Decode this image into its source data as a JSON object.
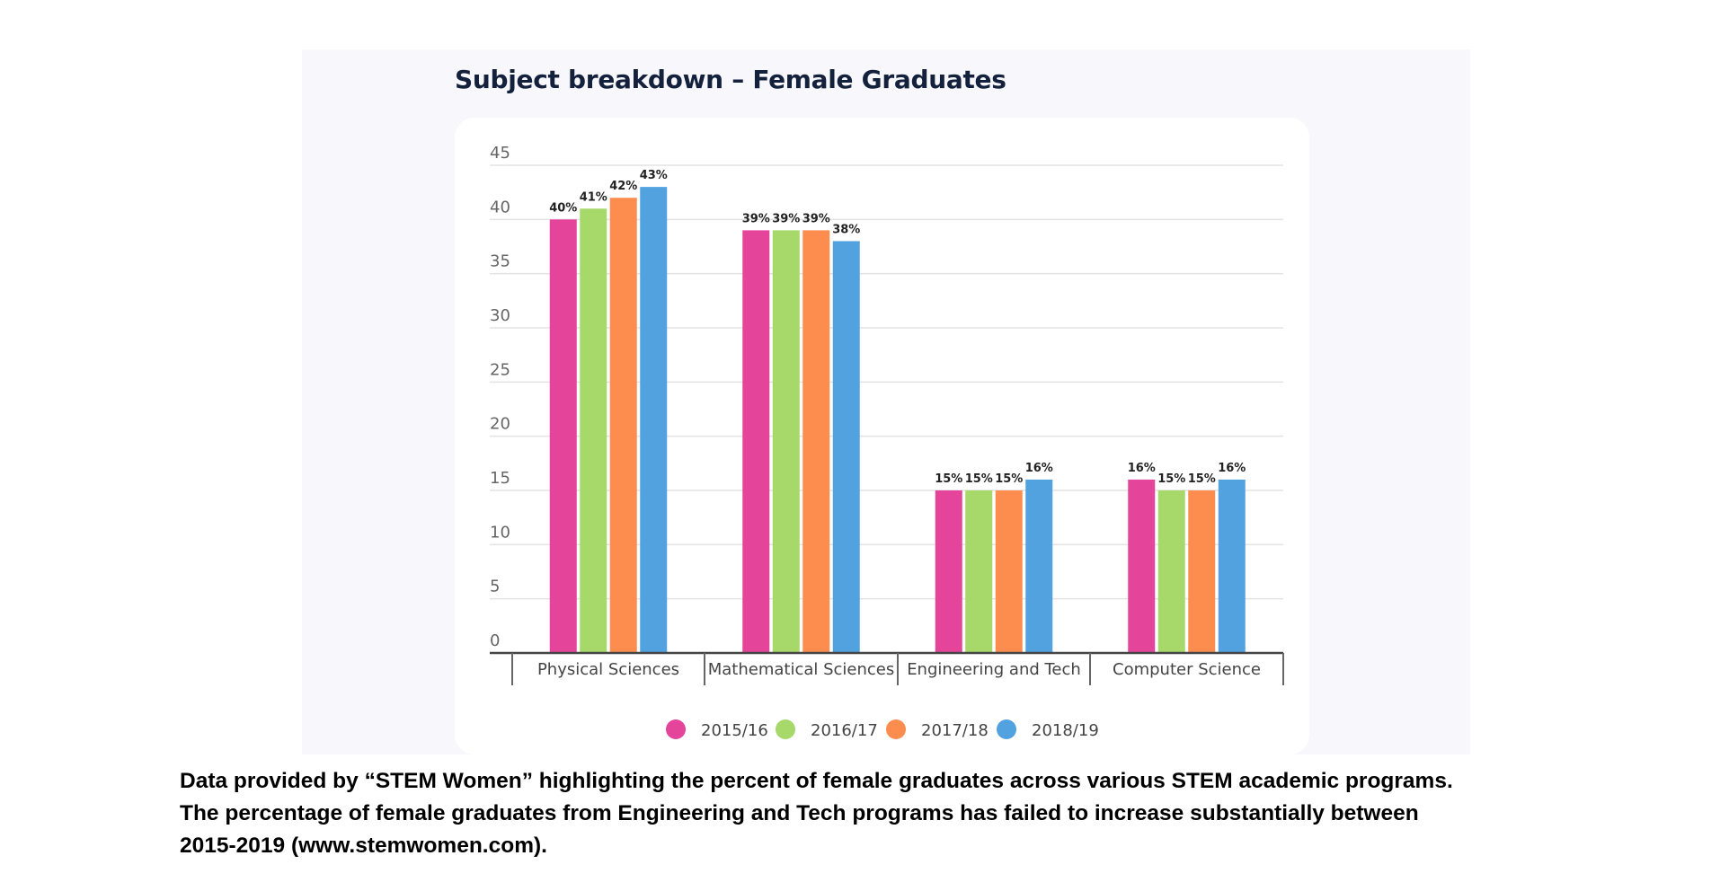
{
  "chart_data": {
    "type": "bar",
    "title": "Subject breakdown – Female Graduates",
    "xlabel": "",
    "ylabel": "",
    "ylim": [
      0,
      45
    ],
    "yticks": [
      0,
      5,
      10,
      15,
      20,
      25,
      30,
      35,
      40,
      45
    ],
    "grid": true,
    "legend_position": "bottom",
    "categories": [
      "Physical Sciences",
      "Mathematical Sciences",
      "Engineering and Tech",
      "Computer Science"
    ],
    "series": [
      {
        "name": "2015/16",
        "color": "#e5449b",
        "values": [
          40,
          39,
          15,
          16
        ],
        "labels": [
          "40%",
          "39%",
          "15%",
          "16%"
        ]
      },
      {
        "name": "2016/17",
        "color": "#a6d96a",
        "values": [
          41,
          39,
          15,
          15
        ],
        "labels": [
          "41%",
          "39%",
          "15%",
          "15%"
        ]
      },
      {
        "name": "2017/18",
        "color": "#fd8d4f",
        "values": [
          42,
          39,
          15,
          15
        ],
        "labels": [
          "42%",
          "39%",
          "15%",
          "15%"
        ]
      },
      {
        "name": "2018/19",
        "color": "#52a2e0",
        "values": [
          43,
          38,
          16,
          16
        ],
        "labels": [
          "43%",
          "38%",
          "16%",
          "16%"
        ]
      }
    ]
  },
  "caption": {
    "line1": "Data provided by “STEM Women” highlighting the percent of female graduates across various STEM academic programs.",
    "line2": "The percentage of female graduates from Engineering and Tech programs has failed to increase substantially between",
    "line3": "2015-2019 (www.stemwomen.com)."
  }
}
